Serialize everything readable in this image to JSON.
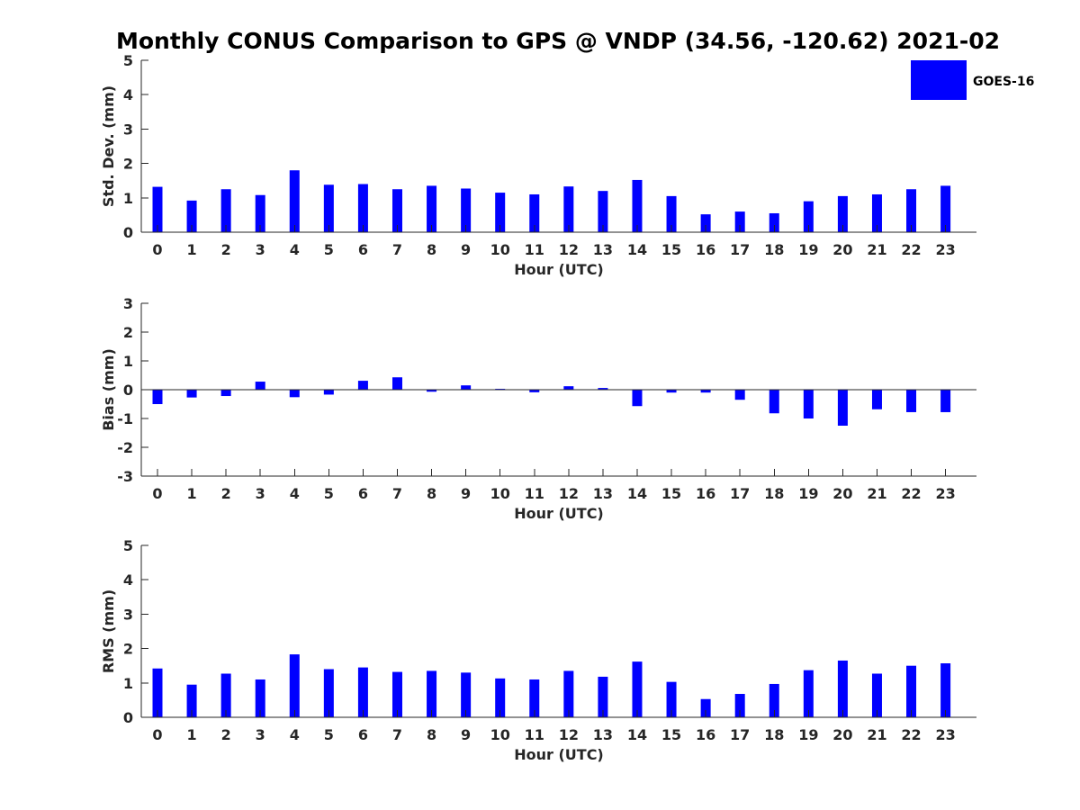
{
  "title": "Monthly CONUS Comparison to GPS @ VNDP (34.56, -120.62) 2021-02",
  "legend": {
    "label": "GOES-16",
    "color": "#0000ff"
  },
  "chart_data": [
    {
      "id": "std",
      "type": "bar",
      "xlabel": "Hour (UTC)",
      "ylabel": "Std. Dev. (mm)",
      "ylim": [
        0,
        5
      ],
      "yticks": [
        0,
        1,
        2,
        3,
        4,
        5
      ],
      "categories": [
        "0",
        "1",
        "2",
        "3",
        "4",
        "5",
        "6",
        "7",
        "8",
        "9",
        "10",
        "11",
        "12",
        "13",
        "14",
        "15",
        "16",
        "17",
        "18",
        "19",
        "20",
        "21",
        "22",
        "23"
      ],
      "series": [
        {
          "name": "GOES-16",
          "color": "#0000ff",
          "values": [
            1.32,
            0.92,
            1.25,
            1.08,
            1.8,
            1.38,
            1.4,
            1.25,
            1.35,
            1.27,
            1.15,
            1.1,
            1.33,
            1.2,
            1.52,
            1.05,
            0.52,
            0.6,
            0.55,
            0.9,
            1.05,
            1.1,
            1.25,
            1.35
          ]
        }
      ]
    },
    {
      "id": "bias",
      "type": "bar",
      "xlabel": "Hour (UTC)",
      "ylabel": "Bias (mm)",
      "ylim": [
        -3,
        3
      ],
      "yticks": [
        -3,
        -2,
        -1,
        0,
        1,
        2,
        3
      ],
      "zero_line": true,
      "categories": [
        "0",
        "1",
        "2",
        "3",
        "4",
        "5",
        "6",
        "7",
        "8",
        "9",
        "10",
        "11",
        "12",
        "13",
        "14",
        "15",
        "16",
        "17",
        "18",
        "19",
        "20",
        "21",
        "22",
        "23"
      ],
      "series": [
        {
          "name": "GOES-16",
          "color": "#0000ff",
          "values": [
            -0.5,
            -0.27,
            -0.22,
            0.28,
            -0.26,
            -0.17,
            0.31,
            0.43,
            -0.07,
            0.15,
            0.03,
            -0.09,
            0.12,
            0.06,
            -0.57,
            -0.1,
            -0.1,
            -0.35,
            -0.82,
            -1.0,
            -1.25,
            -0.68,
            -0.78,
            -0.78
          ]
        }
      ]
    },
    {
      "id": "rms",
      "type": "bar",
      "xlabel": "Hour (UTC)",
      "ylabel": "RMS (mm)",
      "ylim": [
        0,
        5
      ],
      "yticks": [
        0,
        1,
        2,
        3,
        4,
        5
      ],
      "categories": [
        "0",
        "1",
        "2",
        "3",
        "4",
        "5",
        "6",
        "7",
        "8",
        "9",
        "10",
        "11",
        "12",
        "13",
        "14",
        "15",
        "16",
        "17",
        "18",
        "19",
        "20",
        "21",
        "22",
        "23"
      ],
      "series": [
        {
          "name": "GOES-16",
          "color": "#0000ff",
          "values": [
            1.42,
            0.95,
            1.27,
            1.1,
            1.83,
            1.4,
            1.45,
            1.32,
            1.35,
            1.3,
            1.13,
            1.1,
            1.35,
            1.18,
            1.62,
            1.03,
            0.53,
            0.68,
            0.97,
            1.37,
            1.65,
            1.27,
            1.5,
            1.57
          ]
        }
      ]
    }
  ]
}
